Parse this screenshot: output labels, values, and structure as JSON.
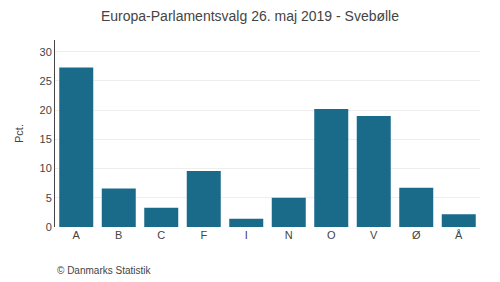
{
  "chart_data": {
    "type": "bar",
    "title": "Europa-Parlamentsvalg 26. maj 2019 - Svebølle",
    "ylabel": "Pct.",
    "annotations": [
      "© Danmarks Statistik"
    ],
    "categories": [
      "A",
      "B",
      "C",
      "F",
      "I",
      "N",
      "O",
      "V",
      "Ø",
      "Å"
    ],
    "values": [
      27.3,
      6.6,
      3.3,
      9.6,
      1.4,
      5.0,
      20.2,
      19.0,
      6.7,
      2.2
    ],
    "color": "#1a6b8a",
    "ylim": [
      0,
      32
    ],
    "yticks": [
      0,
      5,
      10,
      15,
      20,
      25,
      30
    ],
    "grid": true
  }
}
